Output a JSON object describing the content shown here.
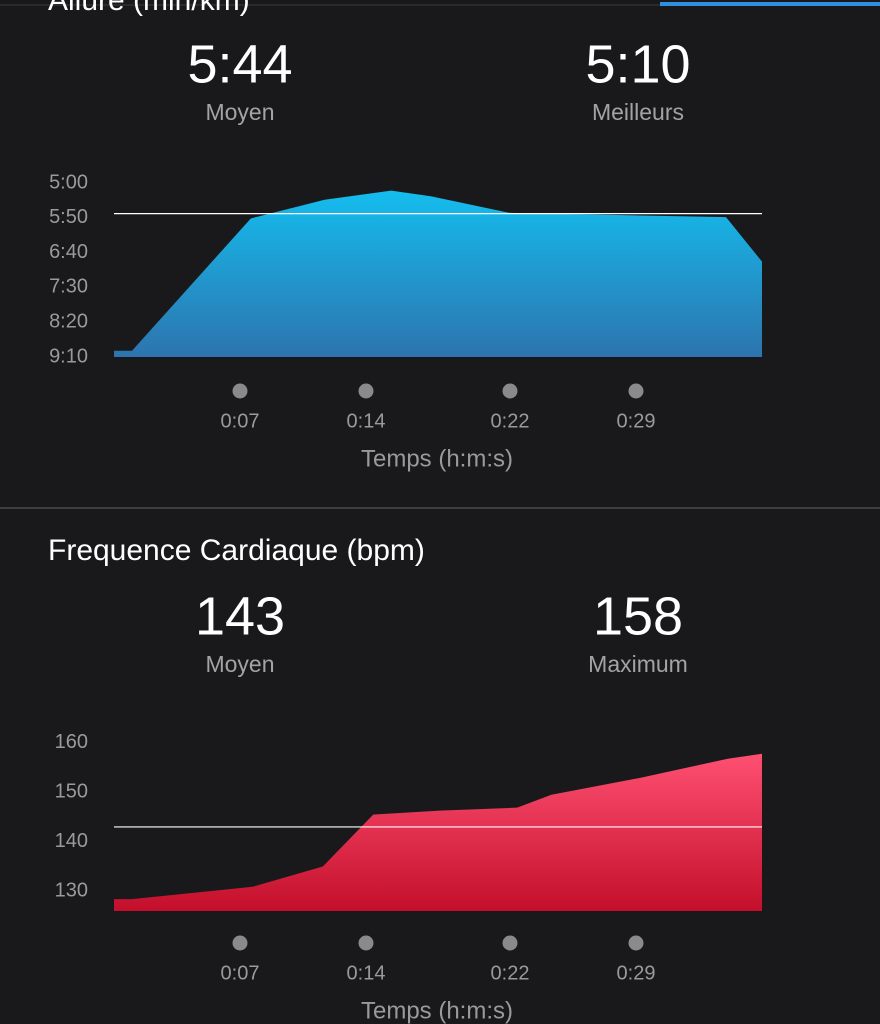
{
  "chart_data": [
    {
      "type": "area",
      "title": "Allure (min/km)",
      "stats": [
        {
          "name": "Moyen",
          "value": 344,
          "value_label": "5:44"
        },
        {
          "name": "Meilleurs",
          "value": 310,
          "value_label": "5:10"
        }
      ],
      "x": [
        0,
        1,
        7.6,
        11.7,
        15.4,
        17.6,
        22,
        34,
        36
      ],
      "values": [
        541,
        541,
        351,
        324,
        311,
        319,
        343,
        349,
        413
      ],
      "color": [
        "#14bdee",
        "#2d74ae"
      ],
      "ylim": [
        550,
        300
      ],
      "yticks": [
        {
          "value": 300,
          "label": "5:00"
        },
        {
          "value": 350,
          "label": "5:50"
        },
        {
          "value": 400,
          "label": "6:40"
        },
        {
          "value": 450,
          "label": "7:30"
        },
        {
          "value": 500,
          "label": "8:20"
        },
        {
          "value": 550,
          "label": "9:10"
        }
      ],
      "xlim": [
        0,
        36
      ],
      "xticks": [
        {
          "value": 7,
          "label": "0:07"
        },
        {
          "value": 14,
          "label": "0:14"
        },
        {
          "value": 22,
          "label": "0:22"
        },
        {
          "value": 29,
          "label": "0:29"
        }
      ],
      "xlabel": "Temps (h:m:s)"
    },
    {
      "type": "area",
      "title": "Frequence Cardiaque (bpm)",
      "stats": [
        {
          "name": "Moyen",
          "value": 143
        },
        {
          "name": "Maximum",
          "value": 158
        }
      ],
      "x": [
        0,
        1,
        7.7,
        11.6,
        14.4,
        18.1,
        22.4,
        24.3,
        29.2,
        34.1,
        36
      ],
      "values": [
        128.4,
        128.4,
        130.9,
        135,
        145.5,
        146.3,
        146.9,
        149.5,
        152.9,
        156.8,
        157.8
      ],
      "color": [
        "#ff5072",
        "#c30f2b"
      ],
      "ylim": [
        126,
        162
      ],
      "yticks": [
        130,
        140,
        150,
        160
      ],
      "xlim": [
        0,
        36
      ],
      "xticks": [
        {
          "value": 7,
          "label": "0:07"
        },
        {
          "value": 14,
          "label": "0:14"
        },
        {
          "value": 22,
          "label": "0:22"
        },
        {
          "value": 29,
          "label": "0:29"
        }
      ],
      "xlabel": "Temps (h:m:s)"
    }
  ]
}
